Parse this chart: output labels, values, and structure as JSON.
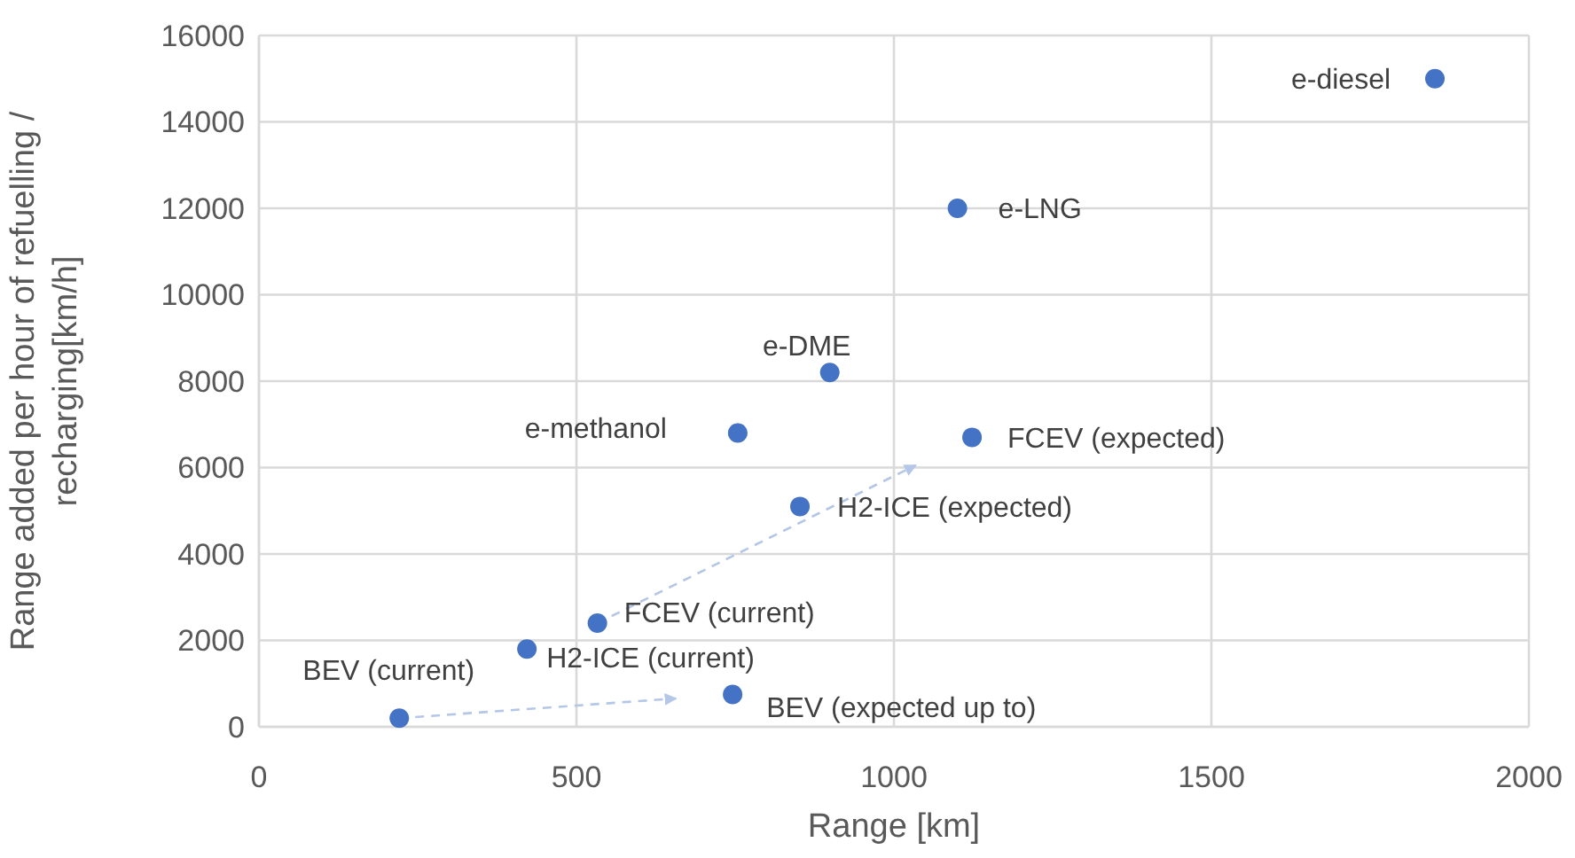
{
  "chart_data": {
    "type": "scatter",
    "xlabel": "Range [km]",
    "ylabel": "Range added per hour of refuelling / recharging[km/h]",
    "x": [
      221,
      422,
      533,
      746,
      852,
      754,
      899,
      1123,
      1100,
      1852
    ],
    "values": [
      200,
      1800,
      2400,
      750,
      5100,
      6800,
      8200,
      6700,
      12000,
      15000
    ],
    "color": "#4472c4",
    "marker": "circle",
    "grid": true,
    "xlim": [
      0,
      2000
    ],
    "xticks": [
      0,
      500,
      1000,
      1500,
      2000
    ],
    "ylim": [
      0,
      16000
    ],
    "yticks": [
      0,
      2000,
      4000,
      6000,
      8000,
      10000,
      12000,
      14000,
      16000
    ],
    "annotations": [
      {
        "text": "BEV (current)",
        "x": 221,
        "y": 200
      },
      {
        "text": "H2-ICE (current)",
        "x": 422,
        "y": 1800
      },
      {
        "text": "FCEV (current)",
        "x": 533,
        "y": 2400
      },
      {
        "text": "BEV (expected up to)",
        "x": 746,
        "y": 750
      },
      {
        "text": "H2-ICE (expected)",
        "x": 852,
        "y": 5100
      },
      {
        "text": "e-methanol",
        "x": 754,
        "y": 6800
      },
      {
        "text": "e-DME",
        "x": 899,
        "y": 8200
      },
      {
        "text": "FCEV (expected)",
        "x": 1123,
        "y": 6700
      },
      {
        "text": "e-LNG",
        "x": 1100,
        "y": 12000
      },
      {
        "text": "e-diesel",
        "x": 1852,
        "y": 15000
      }
    ]
  }
}
